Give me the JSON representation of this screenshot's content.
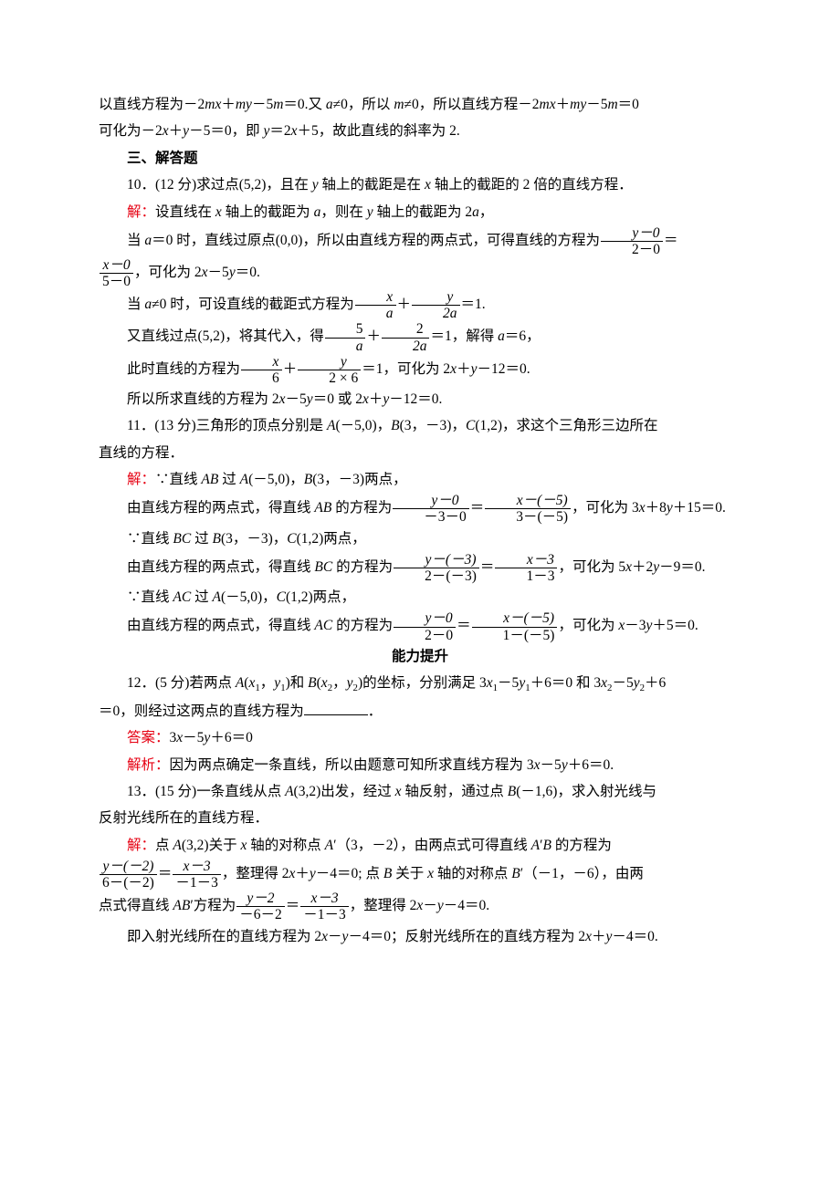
{
  "text_color": "#000000",
  "accent_color": "#e60012",
  "font": {
    "body_family": "SimSun",
    "math_family": "Times New Roman",
    "size_pt": 15.5,
    "line_height": 1.9
  },
  "p01a": "以直线方程为－2",
  "p01b": "＋",
  "p01c": "－5",
  "p01d": "＝0.又 ",
  "p01e": "≠0，所以 ",
  "p01f": "≠0，所以直线方程－2",
  "p01g": "＋",
  "p01h": "－5",
  "p01i": "＝0",
  "p02": "可化为－2",
  "p02b": "＋",
  "p02c": "－5＝0，即 ",
  "p02d": "＝2",
  "p02e": "＋5，故此直线的斜率为 2.",
  "h3": "三、解答题",
  "q10": "10．(12 分)求过点(5,2)，且在 ",
  "q10b": " 轴上的截距是在 ",
  "q10c": " 轴上的截距的 2 倍的直线方程．",
  "a10_1a": "解：",
  "a10_1b": "设直线在 ",
  "a10_1c": " 轴上的截距为 ",
  "a10_1d": "，则在 ",
  "a10_1e": " 轴上的截距为 2",
  "a10_1f": "，",
  "a10_2a": "当 ",
  "a10_2b": "＝0 时，直线过原点(0,0)，所以由直线方程的两点式，可得直线的方程为",
  "a10_2c": "＝",
  "a10_frac1_num": "y－0",
  "a10_frac1_den": "2－0",
  "a10_frac2_num": "x－0",
  "a10_frac2_den": "5－0",
  "a10_3": "，可化为 2",
  "a10_3b": "－5",
  "a10_3c": "＝0.",
  "a10_4a": "当 ",
  "a10_4b": "≠0 时，可设直线的截距式方程为",
  "a10_4c": "＋",
  "a10_4d": "＝1.",
  "a10_frac3_num": "x",
  "a10_frac3_den": "a",
  "a10_frac4_num": "y",
  "a10_frac4_den": "2a",
  "a10_5a": "又直线过点(5,2)，将其代入，得",
  "a10_5b": "＋",
  "a10_5c": "＝1，解得 ",
  "a10_5d": "＝6，",
  "a10_frac5_num": "5",
  "a10_frac5_den": "a",
  "a10_frac6_num": "2",
  "a10_frac6_den": "2a",
  "a10_6a": "此时直线的方程为",
  "a10_6b": "＋",
  "a10_6c": "＝1，可化为 2",
  "a10_6d": "＋",
  "a10_6e": "－12＝0.",
  "a10_frac7_num": "x",
  "a10_frac7_den": "6",
  "a10_frac8_num": "y",
  "a10_frac8_den": "2 × 6",
  "a10_7": "所以所求直线的方程为 2",
  "a10_7b": "－5",
  "a10_7c": "＝0 或 2",
  "a10_7d": "＋",
  "a10_7e": "－12＝0.",
  "q11": "11．(13 分)三角形的顶点分别是 ",
  "q11b": "(－5,0)，",
  "q11c": "(3，－3)，",
  "q11d": "(1,2)，求这个三角形三边所在",
  "q11e": "直线的方程．",
  "a11_1a": "解：",
  "a11_1b": "∵直线 ",
  "a11_1c": " 过 ",
  "a11_1d": "(－5,0)，",
  "a11_1e": "(3，－3)两点，",
  "a11_2a": "由直线方程的两点式，得直线 ",
  "a11_2b": " 的方程为",
  "a11_2c": "＝",
  "a11_2d": "，可化为 3",
  "a11_2e": "＋8",
  "a11_2f": "＋15＝0.",
  "a11_frac1_num": "y－0",
  "a11_frac1_den": "－3－0",
  "a11_frac2_num": "x－(－5)",
  "a11_frac2_den": "3－(－5)",
  "a11_3a": "∵直线 ",
  "a11_3b": " 过 ",
  "a11_3c": "(3，－3)，",
  "a11_3d": "(1,2)两点，",
  "a11_4a": "由直线方程的两点式，得直线 ",
  "a11_4b": " 的方程为",
  "a11_4c": "＝",
  "a11_4d": "，可化为 5",
  "a11_4e": "＋2",
  "a11_4f": "－9＝0.",
  "a11_frac3_num": "y－(－3)",
  "a11_frac3_den": "2－(－3)",
  "a11_frac4_num": "x－3",
  "a11_frac4_den": "1－3",
  "a11_5a": "∵直线 ",
  "a11_5b": " 过 ",
  "a11_5c": "(－5,0)，",
  "a11_5d": "(1,2)两点，",
  "a11_6a": "由直线方程的两点式，得直线 ",
  "a11_6b": " 的方程为",
  "a11_6c": "＝",
  "a11_6d": "，可化为 ",
  "a11_6e": "－3",
  "a11_6f": "＋5＝0.",
  "a11_frac5_num": "y－0",
  "a11_frac5_den": "2－0",
  "a11_frac6_num": "x－(－5)",
  "a11_frac6_den": "1－(－5)",
  "h_ability": "能力提升",
  "q12": "12．(5 分)若两点 ",
  "q12b": "(",
  "q12c": "，",
  "q12d": ")和 ",
  "q12e": "(",
  "q12f": "，",
  "q12g": ")的坐标，分别满足 3",
  "q12h": "－5",
  "q12i": "＋6＝0 和 3",
  "q12j": "－5",
  "q12k": "＋6",
  "q12l": "＝0，则经过这两点的直线方程为",
  "q12m": "．",
  "a12a": "答案：",
  "a12b": "3",
  "a12c": "－5",
  "a12d": "＋6＝0",
  "e12a": "解析：",
  "e12b": "因为两点确定一条直线，所以由题意可知所求直线方程为 3",
  "e12c": "－5",
  "e12d": "＋6＝0.",
  "q13": "13．(15 分)一条直线从点 ",
  "q13b": "(3,2)出发，经过 ",
  "q13c": " 轴反射，通过点 ",
  "q13d": "(－1,6)，求入射光线与",
  "q13e": "反射光线所在的直线方程．",
  "a13_1a": "解：",
  "a13_1b": "点 ",
  "a13_1c": "(3,2)关于 ",
  "a13_1d": " 轴的对称点 ",
  "a13_1e": "′（3，－2），由两点式可得直线 ",
  "a13_1f": "′",
  "a13_1g": " 的方程为",
  "a13_frac1_num": "y－(－2)",
  "a13_frac1_den": "6－(－2)",
  "a13_frac2_num": "x－3",
  "a13_frac2_den": "－1－3",
  "a13_2a": "＝",
  "a13_2b": "，整理得 2",
  "a13_2c": "＋",
  "a13_2d": "－4＝0;  点 ",
  "a13_2e": " 关于 ",
  "a13_2f": " 轴的对称点 ",
  "a13_2g": "′（－1，－6），由两",
  "a13_3a": "点式得直线 ",
  "a13_3b": "′方程为",
  "a13_3c": "＝",
  "a13_3d": "，整理得 2",
  "a13_3e": "－",
  "a13_3f": "－4＝0.",
  "a13_frac3_num": "y－2",
  "a13_frac3_den": "－6－2",
  "a13_frac4_num": "x－3",
  "a13_frac4_den": "－1－3",
  "a13_4a": "即入射光线所在的直线方程为 2",
  "a13_4b": "－",
  "a13_4c": "－4＝0；反射光线所在的直线方程为 2",
  "a13_4d": "＋",
  "a13_4e": "－4＝0.",
  "var_m": "m",
  "var_x": "x",
  "var_y": "y",
  "var_a": "a",
  "var_A": "A",
  "var_B": "B",
  "var_C": "C",
  "var_AB": "AB",
  "var_BC": "BC",
  "var_AC": "AC",
  "var_x1": "x",
  "sub1": "1",
  "var_y1": "y",
  "var_x2": "x",
  "sub2": "2",
  "var_y2": "y",
  "var_mx": "mx",
  "var_my": "my"
}
